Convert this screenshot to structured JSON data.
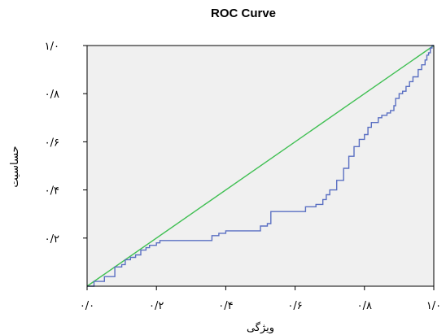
{
  "chart_data": {
    "type": "line",
    "title": "ROC Curve",
    "xlabel": "ویژگی",
    "ylabel": "حساسیت",
    "xlim": [
      0,
      1
    ],
    "ylim": [
      0,
      1
    ],
    "x_ticks": [
      {
        "value": 0.0,
        "label": "۰/۰"
      },
      {
        "value": 0.2,
        "label": "۰/۲"
      },
      {
        "value": 0.4,
        "label": "۰/۴"
      },
      {
        "value": 0.6,
        "label": "۰/۶"
      },
      {
        "value": 0.8,
        "label": "۰/۸"
      },
      {
        "value": 1.0,
        "label": "۱/۰"
      }
    ],
    "y_ticks": [
      {
        "value": 0.2,
        "label": "۰/۲"
      },
      {
        "value": 0.4,
        "label": "۰/۴"
      },
      {
        "value": 0.6,
        "label": "۰/۶"
      },
      {
        "value": 0.8,
        "label": "۰/۸"
      },
      {
        "value": 1.0,
        "label": "۱/۰"
      }
    ],
    "grid": false,
    "background": "#f0f0f0",
    "series": [
      {
        "color": "#5a6fc2",
        "step": true,
        "x": [
          0.0,
          0.02,
          0.02,
          0.05,
          0.05,
          0.08,
          0.08,
          0.1,
          0.1,
          0.11,
          0.11,
          0.125,
          0.125,
          0.14,
          0.14,
          0.155,
          0.155,
          0.17,
          0.17,
          0.18,
          0.18,
          0.2,
          0.2,
          0.21,
          0.21,
          0.36,
          0.36,
          0.38,
          0.38,
          0.4,
          0.4,
          0.5,
          0.5,
          0.52,
          0.52,
          0.53,
          0.53,
          0.63,
          0.63,
          0.66,
          0.66,
          0.68,
          0.68,
          0.69,
          0.69,
          0.7,
          0.7,
          0.72,
          0.72,
          0.74,
          0.74,
          0.755,
          0.755,
          0.77,
          0.77,
          0.785,
          0.785,
          0.8,
          0.8,
          0.81,
          0.81,
          0.82,
          0.82,
          0.84,
          0.84,
          0.85,
          0.85,
          0.865,
          0.865,
          0.875,
          0.875,
          0.885,
          0.885,
          0.89,
          0.89,
          0.9,
          0.9,
          0.91,
          0.91,
          0.92,
          0.92,
          0.93,
          0.93,
          0.94,
          0.94,
          0.955,
          0.955,
          0.965,
          0.965,
          0.975,
          0.975,
          0.98,
          0.98,
          0.985,
          0.985,
          0.99,
          0.99,
          0.995,
          0.995,
          1.0
        ],
        "y": [
          0.0,
          0.0,
          0.02,
          0.02,
          0.04,
          0.04,
          0.08,
          0.08,
          0.09,
          0.09,
          0.11,
          0.11,
          0.12,
          0.12,
          0.13,
          0.13,
          0.15,
          0.15,
          0.16,
          0.16,
          0.17,
          0.17,
          0.18,
          0.18,
          0.19,
          0.19,
          0.21,
          0.21,
          0.22,
          0.22,
          0.23,
          0.23,
          0.25,
          0.25,
          0.26,
          0.26,
          0.31,
          0.31,
          0.33,
          0.33,
          0.34,
          0.34,
          0.36,
          0.36,
          0.38,
          0.38,
          0.4,
          0.4,
          0.44,
          0.44,
          0.49,
          0.49,
          0.54,
          0.54,
          0.58,
          0.58,
          0.61,
          0.61,
          0.63,
          0.63,
          0.66,
          0.66,
          0.68,
          0.68,
          0.7,
          0.7,
          0.71,
          0.71,
          0.72,
          0.72,
          0.73,
          0.73,
          0.75,
          0.75,
          0.78,
          0.78,
          0.8,
          0.8,
          0.81,
          0.81,
          0.83,
          0.83,
          0.85,
          0.85,
          0.87,
          0.87,
          0.9,
          0.9,
          0.92,
          0.92,
          0.94,
          0.94,
          0.96,
          0.96,
          0.97,
          0.97,
          0.99,
          0.99,
          1.0,
          1.0
        ]
      },
      {
        "color": "#3fbf52",
        "x": [
          0.0,
          1.0
        ],
        "y": [
          0.0,
          1.0
        ]
      }
    ]
  }
}
